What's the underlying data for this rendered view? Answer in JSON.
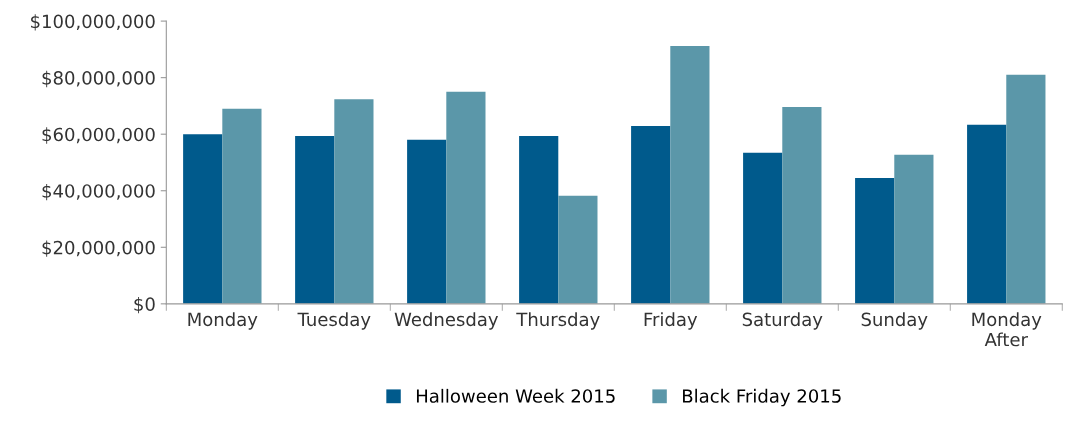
{
  "chart_data": {
    "type": "bar",
    "categories": [
      "Monday",
      "Tuesday",
      "Wednesday",
      "Thursday",
      "Friday",
      "Saturday",
      "Sunday",
      "Monday\nAfter"
    ],
    "series": [
      {
        "name": "Halloween Week 2015",
        "color": "#005a8c",
        "values": [
          60000000,
          59400000,
          58000000,
          59400000,
          62900000,
          53400000,
          44500000,
          63300000
        ]
      },
      {
        "name": "Black Friday 2015",
        "color": "#5b97a9",
        "values": [
          69000000,
          72400000,
          75000000,
          38200000,
          91200000,
          69600000,
          52700000,
          81000000
        ]
      }
    ],
    "ylim": [
      0,
      100000000
    ],
    "yticks": [
      {
        "value": 0,
        "label": "$0"
      },
      {
        "value": 20000000,
        "label": "$20,000,000"
      },
      {
        "value": 40000000,
        "label": "$40,000,000"
      },
      {
        "value": 60000000,
        "label": "$60,000,000"
      },
      {
        "value": 80000000,
        "label": "$80,000,000"
      },
      {
        "value": 100000000,
        "label": "$100,000,000"
      }
    ],
    "grid": false,
    "legend": "bottom"
  }
}
